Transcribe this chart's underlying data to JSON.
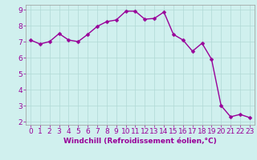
{
  "x": [
    0,
    1,
    2,
    3,
    4,
    5,
    6,
    7,
    8,
    9,
    10,
    11,
    12,
    13,
    14,
    15,
    16,
    17,
    18,
    19,
    20,
    21,
    22,
    23
  ],
  "y": [
    7.1,
    6.85,
    7.0,
    7.5,
    7.1,
    7.0,
    7.45,
    7.95,
    8.25,
    8.35,
    8.9,
    8.9,
    8.4,
    8.45,
    8.85,
    7.45,
    7.1,
    6.4,
    6.9,
    5.9,
    3.0,
    2.3,
    2.45,
    2.25
  ],
  "line_color": "#990099",
  "marker_color": "#990099",
  "bg_color": "#d0f0ee",
  "grid_color": "#b0d8d5",
  "xlabel": "Windchill (Refroidissement éolien,°C)",
  "xlim": [
    -0.5,
    23.5
  ],
  "ylim": [
    1.8,
    9.3
  ],
  "yticks": [
    2,
    3,
    4,
    5,
    6,
    7,
    8,
    9
  ],
  "xticks": [
    0,
    1,
    2,
    3,
    4,
    5,
    6,
    7,
    8,
    9,
    10,
    11,
    12,
    13,
    14,
    15,
    16,
    17,
    18,
    19,
    20,
    21,
    22,
    23
  ],
  "xlabel_fontsize": 6.5,
  "tick_fontsize": 6.5,
  "line_width": 1.0,
  "marker_size": 2.5
}
